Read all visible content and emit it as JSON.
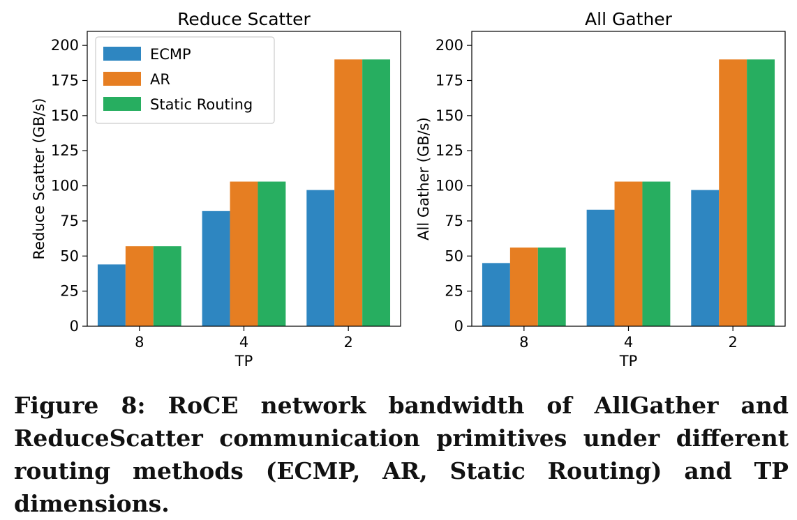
{
  "chart_data": [
    {
      "type": "bar",
      "title": "Reduce Scatter",
      "xlabel": "TP",
      "ylabel": "Reduce Scatter (GB/s)",
      "categories": [
        "8",
        "4",
        "2"
      ],
      "ylim": [
        0,
        210
      ],
      "yticks": [
        0,
        25,
        50,
        75,
        100,
        125,
        150,
        175,
        200
      ],
      "grid": false,
      "legend": "upper-left",
      "series": [
        {
          "name": "ECMP",
          "color": "#2e86c1",
          "values": [
            44,
            82,
            97
          ]
        },
        {
          "name": "AR",
          "color": "#e67e22",
          "values": [
            57,
            103,
            190
          ]
        },
        {
          "name": "Static Routing",
          "color": "#27ae60",
          "values": [
            57,
            103,
            190
          ]
        }
      ]
    },
    {
      "type": "bar",
      "title": "All Gather",
      "xlabel": "TP",
      "ylabel": "All Gather (GB/s)",
      "categories": [
        "8",
        "4",
        "2"
      ],
      "ylim": [
        0,
        210
      ],
      "yticks": [
        0,
        25,
        50,
        75,
        100,
        125,
        150,
        175,
        200
      ],
      "grid": false,
      "series": [
        {
          "name": "ECMP",
          "color": "#2e86c1",
          "values": [
            45,
            83,
            97
          ]
        },
        {
          "name": "AR",
          "color": "#e67e22",
          "values": [
            56,
            103,
            190
          ]
        },
        {
          "name": "Static Routing",
          "color": "#27ae60",
          "values": [
            56,
            103,
            190
          ]
        }
      ]
    }
  ],
  "caption": "Figure 8: RoCE network bandwidth of AllGather and ReduceScatter communication primitives under different routing methods (ECMP, AR, Static Routing) and TP dimensions."
}
